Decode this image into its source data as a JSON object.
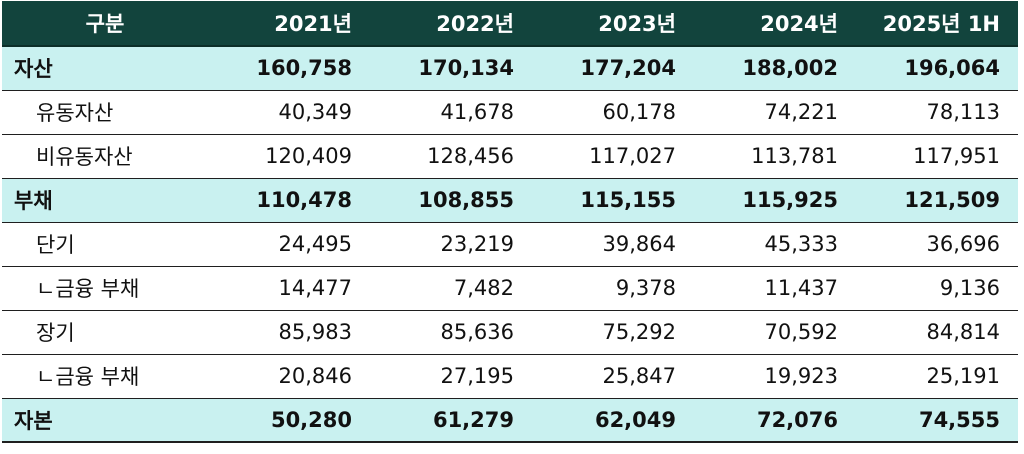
{
  "table": {
    "header": [
      "구분",
      "2021년",
      "2022년",
      "2023년",
      "2024년",
      "2025년 1H"
    ],
    "rows": [
      {
        "label": "자산",
        "kind": "major",
        "values": [
          "160,758",
          "170,134",
          "177,204",
          "188,002",
          "196,064"
        ]
      },
      {
        "label": "유동자산",
        "kind": "minor",
        "values": [
          "40,349",
          "41,678",
          "60,178",
          "74,221",
          "78,113"
        ]
      },
      {
        "label": "비유동자산",
        "kind": "minor",
        "values": [
          "120,409",
          "128,456",
          "117,027",
          "113,781",
          "117,951"
        ]
      },
      {
        "label": "부채",
        "kind": "major",
        "values": [
          "110,478",
          "108,855",
          "115,155",
          "115,925",
          "121,509"
        ]
      },
      {
        "label": "단기",
        "kind": "minor",
        "values": [
          "24,495",
          "23,219",
          "39,864",
          "45,333",
          "36,696"
        ]
      },
      {
        "label": "ㄴ금융 부채",
        "kind": "minor",
        "values": [
          "14,477",
          "7,482",
          "9,378",
          "11,437",
          "9,136"
        ]
      },
      {
        "label": "장기",
        "kind": "minor",
        "values": [
          "85,983",
          "85,636",
          "75,292",
          "70,592",
          "84,814"
        ]
      },
      {
        "label": "ㄴ금융 부채",
        "kind": "minor",
        "values": [
          "20,846",
          "27,195",
          "25,847",
          "19,923",
          "25,191"
        ]
      },
      {
        "label": "자본",
        "kind": "major",
        "values": [
          "50,280",
          "61,279",
          "62,049",
          "72,076",
          "74,555"
        ]
      }
    ]
  },
  "colors": {
    "header_bg": "#12443d",
    "header_text": "#ffffff",
    "major_row_bg": "#c9f1f0",
    "minor_row_bg": "#ffffff"
  }
}
